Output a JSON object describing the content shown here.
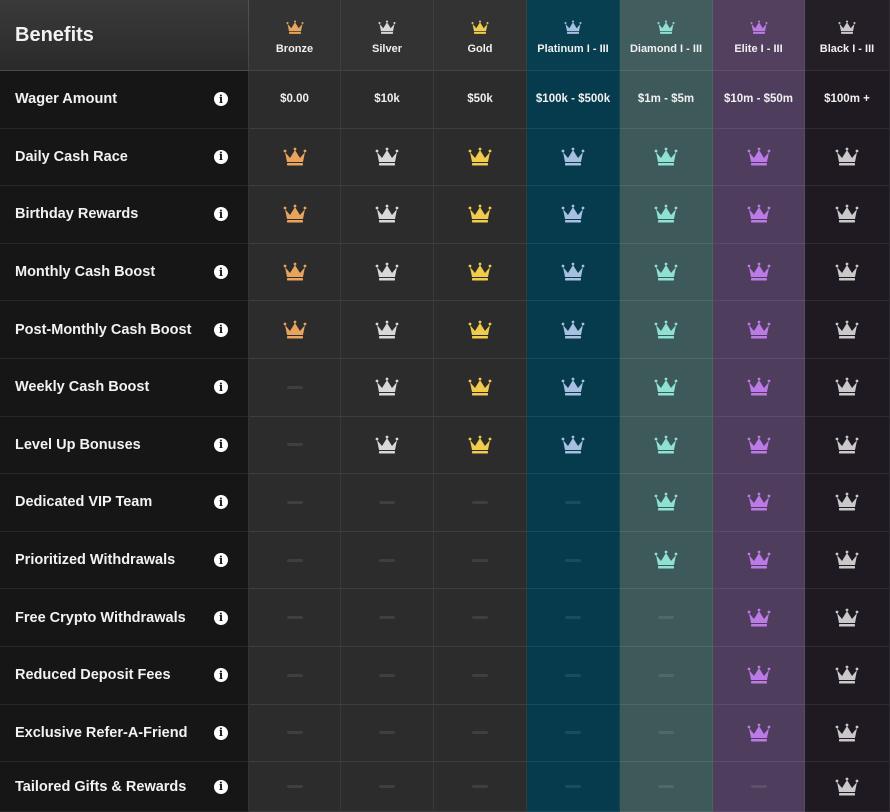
{
  "header": {
    "title": "Benefits"
  },
  "colors": {
    "bronze": "#e8a35c",
    "silver": "#d8d8d8",
    "gold": "#f0cc4a",
    "platinum": "#a7bfe0",
    "diamond": "#8fe2d2",
    "elite": "#bb7ae6",
    "black": "#c9c9c9"
  },
  "tiers": [
    {
      "key": "bronze",
      "name": "Bronze",
      "wager": "$0.00"
    },
    {
      "key": "silver",
      "name": "Silver",
      "wager": "$10k"
    },
    {
      "key": "gold",
      "name": "Gold",
      "wager": "$50k"
    },
    {
      "key": "platinum",
      "name": "Platinum I - III",
      "wager": "$100k - $500k"
    },
    {
      "key": "diamond",
      "name": "Diamond I - III",
      "wager": "$1m - $5m"
    },
    {
      "key": "elite",
      "name": "Elite I - III",
      "wager": "$10m - $50m"
    },
    {
      "key": "black",
      "name": "Black I - III",
      "wager": "$100m +"
    }
  ],
  "wager_row": {
    "label": "Wager Amount",
    "info_icon": "info-icon"
  },
  "benefits": [
    {
      "label": "Daily Cash Race",
      "available": [
        true,
        true,
        true,
        true,
        true,
        true,
        true
      ]
    },
    {
      "label": "Birthday Rewards",
      "available": [
        true,
        true,
        true,
        true,
        true,
        true,
        true
      ]
    },
    {
      "label": "Monthly Cash Boost",
      "available": [
        true,
        true,
        true,
        true,
        true,
        true,
        true
      ]
    },
    {
      "label": "Post-Monthly Cash Boost",
      "available": [
        true,
        true,
        true,
        true,
        true,
        true,
        true
      ]
    },
    {
      "label": "Weekly Cash Boost",
      "available": [
        false,
        true,
        true,
        true,
        true,
        true,
        true
      ]
    },
    {
      "label": "Level Up Bonuses",
      "available": [
        false,
        true,
        true,
        true,
        true,
        true,
        true
      ]
    },
    {
      "label": "Dedicated VIP Team",
      "available": [
        false,
        false,
        false,
        false,
        true,
        true,
        true
      ]
    },
    {
      "label": "Prioritized Withdrawals",
      "available": [
        false,
        false,
        false,
        false,
        true,
        true,
        true
      ]
    },
    {
      "label": "Free Crypto Withdrawals",
      "available": [
        false,
        false,
        false,
        false,
        false,
        true,
        true
      ]
    },
    {
      "label": "Reduced Deposit Fees",
      "available": [
        false,
        false,
        false,
        false,
        false,
        true,
        true
      ]
    },
    {
      "label": "Exclusive Refer-A-Friend",
      "available": [
        false,
        false,
        false,
        false,
        false,
        true,
        true
      ]
    },
    {
      "label": "Tailored Gifts & Rewards",
      "available": [
        false,
        false,
        false,
        false,
        false,
        false,
        true
      ]
    }
  ]
}
